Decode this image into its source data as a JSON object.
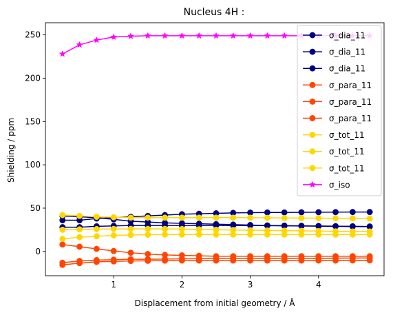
{
  "chart_data": {
    "type": "line",
    "title": "Nucleus 4H :",
    "xlabel": "Displacement from initial geometry / Å",
    "ylabel": "Shielding / ppm",
    "xlim": [
      0.0,
      4.96
    ],
    "ylim": [
      -28,
      264
    ],
    "xticks": [
      1,
      2,
      3,
      4
    ],
    "yticks": [
      0,
      50,
      100,
      150,
      200,
      250
    ],
    "grid": false,
    "legend_position": "top-right",
    "x": [
      0.25,
      0.5,
      0.75,
      1.0,
      1.25,
      1.5,
      1.75,
      2.0,
      2.25,
      2.5,
      2.75,
      3.0,
      3.25,
      3.5,
      3.75,
      4.0,
      4.25,
      4.5,
      4.75
    ],
    "series": [
      {
        "name": "σ_dia_11",
        "color": "#000080",
        "marker": "circle",
        "values": [
          36,
          36,
          38,
          39,
          40,
          41,
          42,
          43,
          43.5,
          44,
          44.5,
          44.8,
          45,
          45,
          45.2,
          45.3,
          45.4,
          45.5,
          45.5
        ]
      },
      {
        "name": "σ_dia_11",
        "color": "#000080",
        "marker": "circle",
        "values": [
          28,
          28,
          29,
          29.5,
          30,
          30,
          30,
          30,
          30,
          30,
          30,
          30,
          29.8,
          29.6,
          29.4,
          29.2,
          29,
          28.8,
          28.6
        ]
      },
      {
        "name": "σ_dia_11",
        "color": "#000080",
        "marker": "circle",
        "values": [
          41,
          40,
          39,
          37,
          35,
          34,
          33,
          32.5,
          32,
          31.5,
          31,
          30.5,
          30,
          29.8,
          29.6,
          29.4,
          29.2,
          29,
          28.8
        ]
      },
      {
        "name": "σ_para_11",
        "color": "#FF4500",
        "marker": "circle",
        "values": [
          8,
          5.5,
          3,
          0.5,
          -1.5,
          -3,
          -4,
          -4.5,
          -5,
          -5.5,
          -5.5,
          -5.5,
          -5.5,
          -5.5,
          -5.5,
          -5.5,
          -5.5,
          -5.5,
          -5.5
        ]
      },
      {
        "name": "σ_para_11",
        "color": "#FF4500",
        "marker": "circle",
        "values": [
          -13,
          -11,
          -10,
          -9.5,
          -9,
          -9,
          -8.8,
          -8.5,
          -8.3,
          -8.2,
          -8,
          -8,
          -8,
          -8,
          -8,
          -8,
          -7.8,
          -7.6,
          -7.5
        ]
      },
      {
        "name": "σ_para_11",
        "color": "#FF4500",
        "marker": "circle",
        "values": [
          -15.5,
          -13.5,
          -12,
          -11.5,
          -11,
          -10.8,
          -10.6,
          -10.5,
          -10.5,
          -10.5,
          -10.5,
          -10.5,
          -10.5,
          -10.5,
          -10.5,
          -10.5,
          -10.5,
          -10.4,
          -10.3
        ]
      },
      {
        "name": "σ_tot_11",
        "color": "#FFD700",
        "marker": "circle",
        "values": [
          42,
          41,
          40,
          39.5,
          39,
          39,
          39,
          39,
          39,
          39,
          39,
          39,
          38.8,
          38.6,
          38.5,
          38.4,
          38.3,
          38.2,
          38
        ]
      },
      {
        "name": "σ_tot_11",
        "color": "#FFD700",
        "marker": "circle",
        "values": [
          25,
          25.5,
          25.8,
          26,
          26,
          26,
          26,
          25.8,
          25.5,
          25,
          24.8,
          24.5,
          24.2,
          24,
          23.8,
          23.5,
          23.2,
          23,
          23
        ]
      },
      {
        "name": "σ_tot_11",
        "color": "#FFD700",
        "marker": "circle",
        "values": [
          14.5,
          16.5,
          17.5,
          18.5,
          19,
          19.3,
          19.5,
          19.5,
          19.5,
          19.5,
          19.5,
          19.5,
          19.5,
          19.5,
          19.5,
          19.5,
          19.5,
          19.5,
          19.5
        ]
      },
      {
        "name": "σ_iso",
        "color": "#FF00FF",
        "marker": "star",
        "values": [
          228,
          238.5,
          244,
          247.5,
          248.5,
          249,
          249,
          249,
          249,
          249,
          249,
          249,
          249,
          249,
          249,
          249,
          249,
          249,
          249
        ]
      }
    ]
  }
}
